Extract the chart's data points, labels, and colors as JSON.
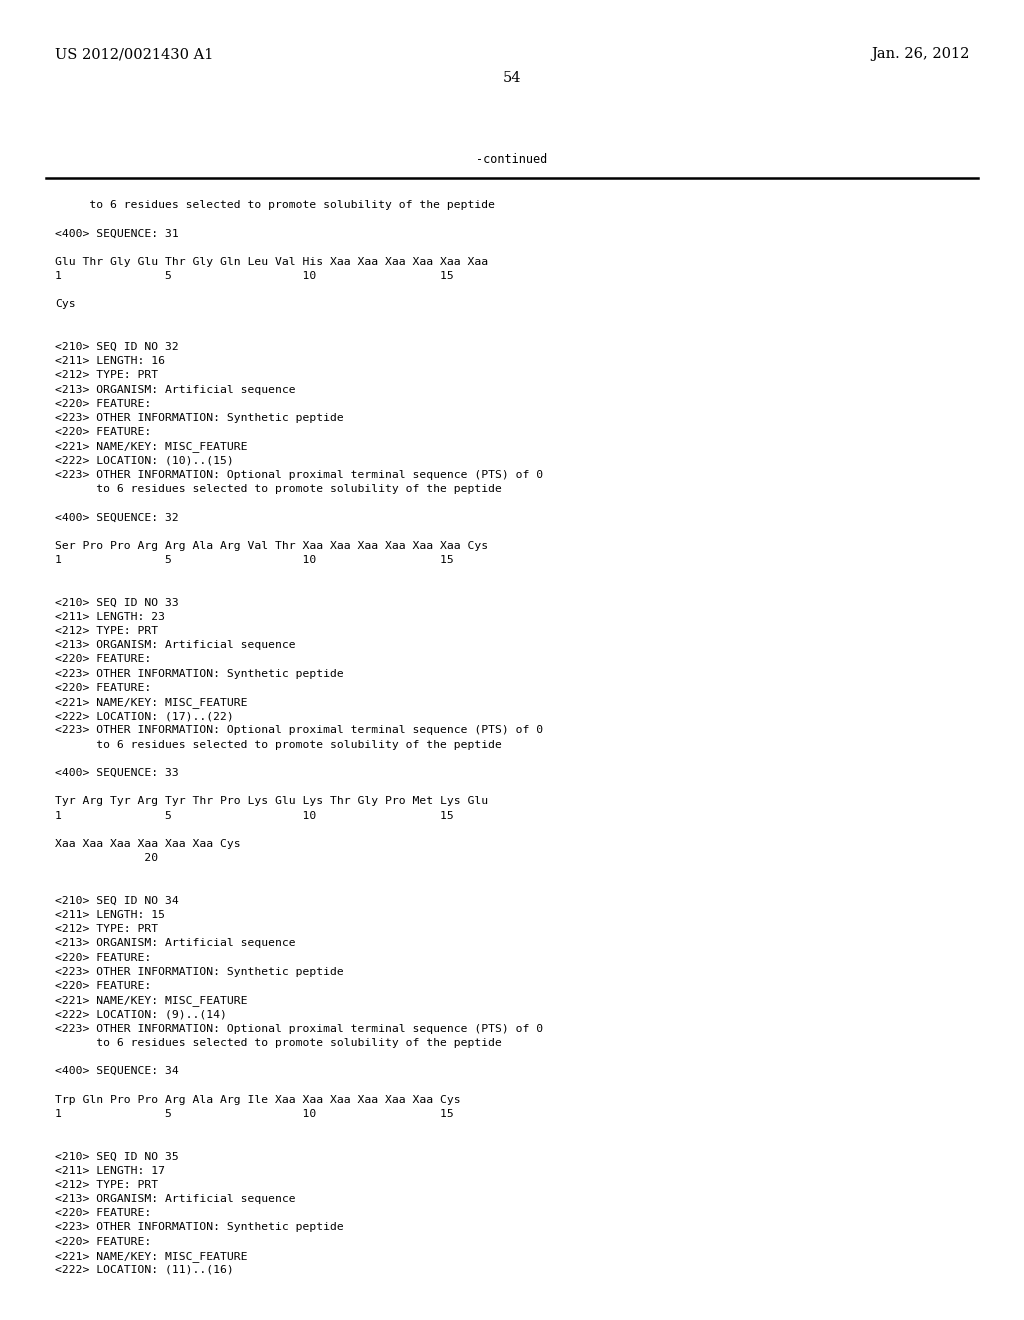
{
  "background_color": "#ffffff",
  "header_left": "US 2012/0021430 A1",
  "header_right": "Jan. 26, 2012",
  "page_number": "54",
  "continued_label": "-continued",
  "content_lines": [
    "     to 6 residues selected to promote solubility of the peptide",
    "",
    "<400> SEQUENCE: 31",
    "",
    "Glu Thr Gly Glu Thr Gly Gln Leu Val His Xaa Xaa Xaa Xaa Xaa Xaa",
    "1               5                   10                  15",
    "",
    "Cys",
    "",
    "",
    "<210> SEQ ID NO 32",
    "<211> LENGTH: 16",
    "<212> TYPE: PRT",
    "<213> ORGANISM: Artificial sequence",
    "<220> FEATURE:",
    "<223> OTHER INFORMATION: Synthetic peptide",
    "<220> FEATURE:",
    "<221> NAME/KEY: MISC_FEATURE",
    "<222> LOCATION: (10)..(15)",
    "<223> OTHER INFORMATION: Optional proximal terminal sequence (PTS) of 0",
    "      to 6 residues selected to promote solubility of the peptide",
    "",
    "<400> SEQUENCE: 32",
    "",
    "Ser Pro Pro Arg Arg Ala Arg Val Thr Xaa Xaa Xaa Xaa Xaa Xaa Cys",
    "1               5                   10                  15",
    "",
    "",
    "<210> SEQ ID NO 33",
    "<211> LENGTH: 23",
    "<212> TYPE: PRT",
    "<213> ORGANISM: Artificial sequence",
    "<220> FEATURE:",
    "<223> OTHER INFORMATION: Synthetic peptide",
    "<220> FEATURE:",
    "<221> NAME/KEY: MISC_FEATURE",
    "<222> LOCATION: (17)..(22)",
    "<223> OTHER INFORMATION: Optional proximal terminal sequence (PTS) of 0",
    "      to 6 residues selected to promote solubility of the peptide",
    "",
    "<400> SEQUENCE: 33",
    "",
    "Tyr Arg Tyr Arg Tyr Thr Pro Lys Glu Lys Thr Gly Pro Met Lys Glu",
    "1               5                   10                  15",
    "",
    "Xaa Xaa Xaa Xaa Xaa Xaa Cys",
    "             20",
    "",
    "",
    "<210> SEQ ID NO 34",
    "<211> LENGTH: 15",
    "<212> TYPE: PRT",
    "<213> ORGANISM: Artificial sequence",
    "<220> FEATURE:",
    "<223> OTHER INFORMATION: Synthetic peptide",
    "<220> FEATURE:",
    "<221> NAME/KEY: MISC_FEATURE",
    "<222> LOCATION: (9)..(14)",
    "<223> OTHER INFORMATION: Optional proximal terminal sequence (PTS) of 0",
    "      to 6 residues selected to promote solubility of the peptide",
    "",
    "<400> SEQUENCE: 34",
    "",
    "Trp Gln Pro Pro Arg Ala Arg Ile Xaa Xaa Xaa Xaa Xaa Xaa Cys",
    "1               5                   10                  15",
    "",
    "",
    "<210> SEQ ID NO 35",
    "<211> LENGTH: 17",
    "<212> TYPE: PRT",
    "<213> ORGANISM: Artificial sequence",
    "<220> FEATURE:",
    "<223> OTHER INFORMATION: Synthetic peptide",
    "<220> FEATURE:",
    "<221> NAME/KEY: MISC_FEATURE",
    "<222> LOCATION: (11)..(16)"
  ],
  "font_size_header": 10.5,
  "font_size_page": 10.5,
  "font_size_content": 8.2,
  "font_size_continued": 8.5
}
